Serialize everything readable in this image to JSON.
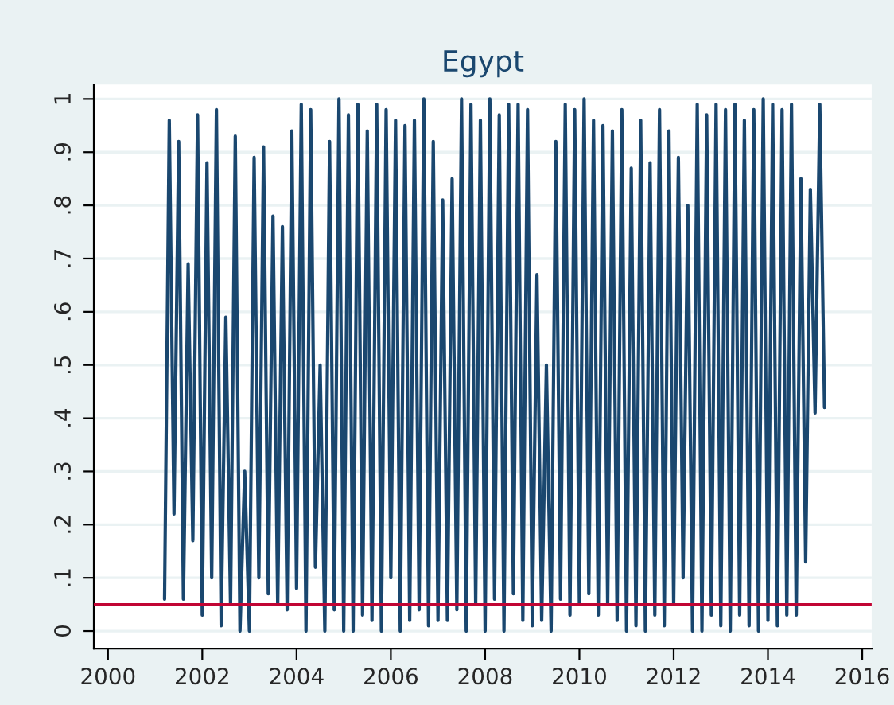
{
  "chart_data": {
    "type": "line",
    "title": "Egypt",
    "x": [
      2001.2,
      2001.3,
      2001.4,
      2001.5,
      2001.6,
      2001.7,
      2001.8,
      2001.9,
      2002.0,
      2002.1,
      2002.2,
      2002.3,
      2002.4,
      2002.5,
      2002.6,
      2002.7,
      2002.8,
      2002.9,
      2003.0,
      2003.1,
      2003.2,
      2003.3,
      2003.4,
      2003.5,
      2003.6,
      2003.7,
      2003.8,
      2003.9,
      2004.0,
      2004.1,
      2004.2,
      2004.3,
      2004.4,
      2004.5,
      2004.6,
      2004.7,
      2004.8,
      2004.9,
      2005.0,
      2005.1,
      2005.2,
      2005.3,
      2005.4,
      2005.5,
      2005.6,
      2005.7,
      2005.8,
      2005.9,
      2006.0,
      2006.1,
      2006.2,
      2006.3,
      2006.4,
      2006.5,
      2006.6,
      2006.7,
      2006.8,
      2006.9,
      2007.0,
      2007.1,
      2007.2,
      2007.3,
      2007.4,
      2007.5,
      2007.6,
      2007.7,
      2007.8,
      2007.9,
      2008.0,
      2008.1,
      2008.2,
      2008.3,
      2008.4,
      2008.5,
      2008.6,
      2008.7,
      2008.8,
      2008.9,
      2009.0,
      2009.1,
      2009.2,
      2009.3,
      2009.4,
      2009.5,
      2009.6,
      2009.7,
      2009.8,
      2009.9,
      2010.0,
      2010.1,
      2010.2,
      2010.3,
      2010.4,
      2010.5,
      2010.6,
      2010.7,
      2010.8,
      2010.9,
      2011.0,
      2011.1,
      2011.2,
      2011.3,
      2011.4,
      2011.5,
      2011.6,
      2011.7,
      2011.8,
      2011.9,
      2012.0,
      2012.1,
      2012.2,
      2012.3,
      2012.4,
      2012.5,
      2012.6,
      2012.7,
      2012.8,
      2012.9,
      2013.0,
      2013.1,
      2013.2,
      2013.3,
      2013.4,
      2013.5,
      2013.6,
      2013.7,
      2013.8,
      2013.9,
      2014.0,
      2014.1,
      2014.2,
      2014.3,
      2014.4,
      2014.5,
      2014.6,
      2014.7,
      2014.8,
      2014.9,
      2015.0,
      2015.1,
      2015.2
    ],
    "series": [
      {
        "color": "#1a476f",
        "values": [
          0.06,
          0.96,
          0.22,
          0.92,
          0.06,
          0.69,
          0.17,
          0.97,
          0.03,
          0.88,
          0.1,
          0.98,
          0.01,
          0.59,
          0.05,
          0.93,
          0.0,
          0.3,
          0.0,
          0.89,
          0.1,
          0.91,
          0.07,
          0.78,
          0.05,
          0.76,
          0.04,
          0.94,
          0.08,
          0.99,
          0.0,
          0.98,
          0.12,
          0.5,
          0.0,
          0.92,
          0.04,
          1.0,
          0.0,
          0.97,
          0.0,
          0.99,
          0.03,
          0.94,
          0.02,
          0.99,
          0.0,
          0.98,
          0.1,
          0.96,
          0.0,
          0.95,
          0.02,
          0.96,
          0.04,
          1.0,
          0.01,
          0.92,
          0.02,
          0.81,
          0.02,
          0.85,
          0.04,
          1.0,
          0.0,
          0.99,
          0.05,
          0.96,
          0.0,
          1.0,
          0.06,
          0.97,
          0.0,
          0.99,
          0.07,
          0.99,
          0.02,
          0.98,
          0.01,
          0.67,
          0.02,
          0.5,
          0.0,
          0.92,
          0.06,
          0.99,
          0.03,
          0.98,
          0.05,
          1.0,
          0.07,
          0.96,
          0.03,
          0.95,
          0.05,
          0.94,
          0.02,
          0.98,
          0.0,
          0.87,
          0.01,
          0.96,
          0.0,
          0.88,
          0.03,
          0.98,
          0.01,
          0.94,
          0.05,
          0.89,
          0.1,
          0.8,
          0.0,
          0.99,
          0.0,
          0.97,
          0.03,
          0.99,
          0.01,
          0.98,
          0.0,
          0.99,
          0.03,
          0.96,
          0.01,
          0.98,
          0.0,
          1.0,
          0.02,
          0.99,
          0.01,
          0.98,
          0.03,
          0.99,
          0.03,
          0.85,
          0.13,
          0.83,
          0.41,
          0.99,
          0.42
        ]
      }
    ],
    "xlim": [
      1999.7,
      2016.2
    ],
    "xticks": [
      2000,
      2002,
      2004,
      2006,
      2008,
      2010,
      2012,
      2014,
      2016
    ],
    "ylim": [
      -0.033,
      1.027
    ],
    "yticks": [
      {
        "value": 0,
        "label": "0"
      },
      {
        "value": 0.1,
        "label": ".1"
      },
      {
        "value": 0.2,
        "label": ".2"
      },
      {
        "value": 0.3,
        "label": ".3"
      },
      {
        "value": 0.4,
        "label": ".4"
      },
      {
        "value": 0.5,
        "label": ".5"
      },
      {
        "value": 0.6,
        "label": ".6"
      },
      {
        "value": 0.7,
        "label": ".7"
      },
      {
        "value": 0.8,
        "label": ".8"
      },
      {
        "value": 0.9,
        "label": ".9"
      },
      {
        "value": 1,
        "label": "1"
      }
    ],
    "ref_lines": [
      {
        "axis": "y",
        "value": 0.05,
        "color": "#c10534"
      }
    ],
    "grid": "y",
    "legend": false
  }
}
